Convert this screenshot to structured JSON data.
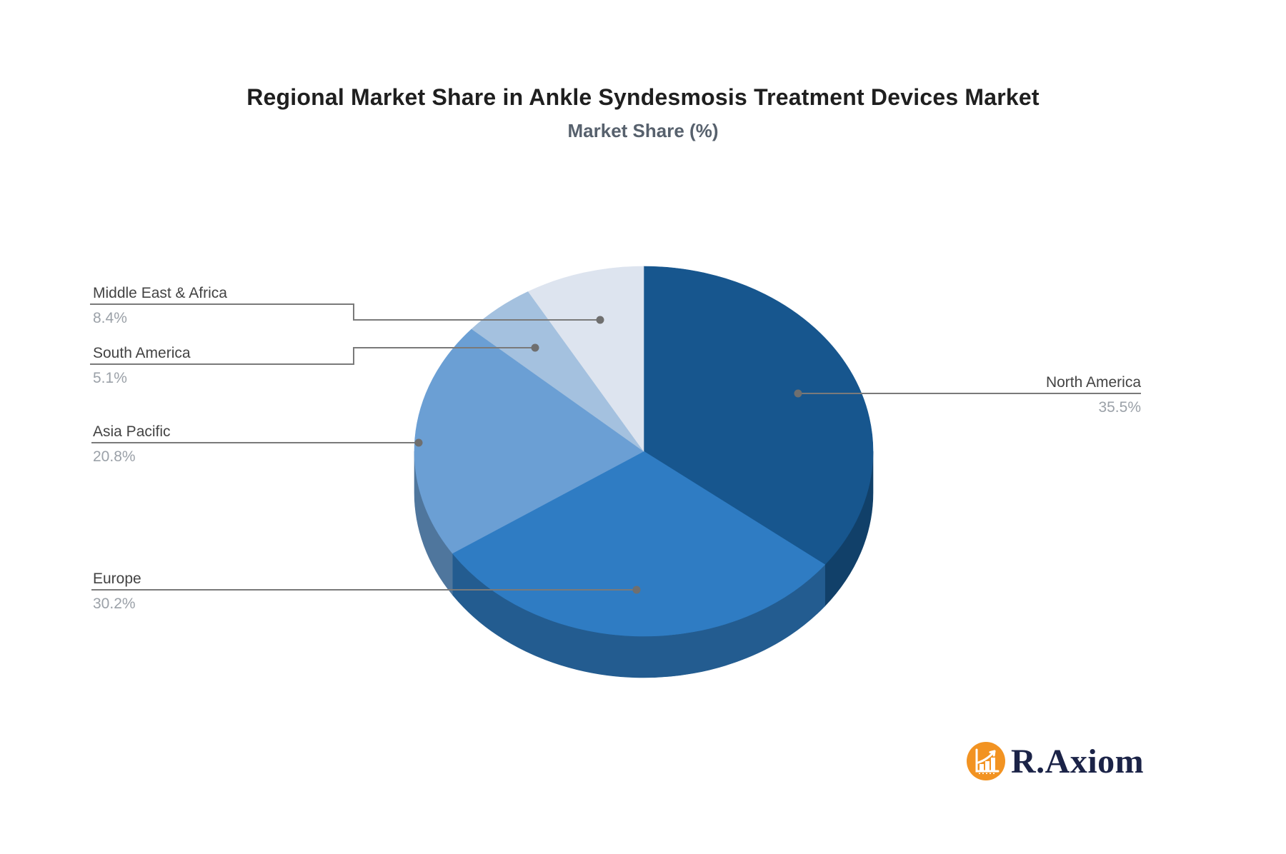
{
  "chart_data": {
    "type": "pie",
    "style": "3d",
    "title": "Regional Market Share in Ankle Syndesmosis Treatment Devices Market",
    "subtitle": "Market Share (%)",
    "direction": "clockwise",
    "start_angle": "12-oclock",
    "value_suffix": "%",
    "legend": "none",
    "leader_line_color": "#7A7A7A",
    "leader_dot_color": "#6F6F6F",
    "label_color": "#434343",
    "value_color": "#9BA1A8",
    "slices": [
      {
        "label": "North America",
        "value": 35.5,
        "color": "#17568E"
      },
      {
        "label": "Europe",
        "value": 30.2,
        "color": "#2F7CC3"
      },
      {
        "label": "Asia Pacific",
        "value": 20.8,
        "color": "#6B9FD4"
      },
      {
        "label": "South America",
        "value": 5.1,
        "color": "#A4C1DF"
      },
      {
        "label": "Middle East & Africa",
        "value": 8.4,
        "color": "#DDE4EF"
      }
    ]
  },
  "branding": {
    "logo_text": "R.Axiom",
    "logo_text_color": "#1B2347",
    "logo_badge_color": "#F29322",
    "logo_badge_icon": "bar-chart-growth-icon"
  }
}
